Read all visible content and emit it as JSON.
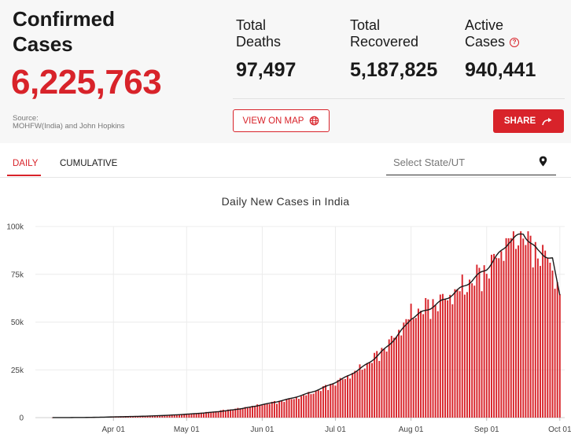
{
  "summary": {
    "confirmed_label": "Confirmed Cases",
    "confirmed_value": "6,225,763",
    "source_label": "Source:",
    "source_text": "MOHFW(India) and John Hopkins",
    "deaths_label_1": "Total",
    "deaths_label_2": "Deaths",
    "deaths_value": "97,497",
    "recovered_label_1": "Total",
    "recovered_label_2": "Recovered",
    "recovered_value": "5,187,825",
    "active_label_1": "Active",
    "active_label_2": "Cases",
    "active_value": "940,441",
    "help_icon": "?"
  },
  "buttons": {
    "map_label": "VIEW ON MAP",
    "share_label": "SHARE"
  },
  "tabs": [
    {
      "label": "DAILY",
      "active": true
    },
    {
      "label": "CUMULATIVE",
      "active": false
    }
  ],
  "state_select": {
    "placeholder": "Select State/UT"
  },
  "icons": {
    "globe": "globe-icon",
    "share": "share-arrow-icon",
    "pin": "location-pin-icon"
  },
  "colors": {
    "accent": "#d8232a",
    "bar": "#d8232a",
    "line": "#1a1a1a"
  },
  "chart_data": {
    "type": "bar",
    "title": "Daily New Cases in India",
    "xlabel": "",
    "ylabel": "",
    "x_start": "2020-03-07",
    "x_end": "2020-10-01",
    "x_ticks": [
      "Apr 01",
      "May 01",
      "Jun 01",
      "Jul 01",
      "Aug 01",
      "Sep 01",
      "Oct 01"
    ],
    "y_ticks": [
      "0",
      "25k",
      "50k",
      "75k",
      "100k"
    ],
    "ylim": [
      0,
      100000
    ],
    "grid": true,
    "legend": "none",
    "series": [
      {
        "kind": "bar",
        "anchors": [
          [
            "2020-03-07",
            30
          ],
          [
            "2020-03-20",
            100
          ],
          [
            "2020-04-01",
            450
          ],
          [
            "2020-04-15",
            1000
          ],
          [
            "2020-05-01",
            1900
          ],
          [
            "2020-05-15",
            3700
          ],
          [
            "2020-06-01",
            7000
          ],
          [
            "2020-06-15",
            10500
          ],
          [
            "2020-07-01",
            18500
          ],
          [
            "2020-07-15",
            29500
          ],
          [
            "2020-08-01",
            55000
          ],
          [
            "2020-08-15",
            63000
          ],
          [
            "2020-09-01",
            78000
          ],
          [
            "2020-09-11",
            96000
          ],
          [
            "2020-09-16",
            97000
          ],
          [
            "2020-09-22",
            87000
          ],
          [
            "2020-09-27",
            84000
          ],
          [
            "2020-10-01",
            65000
          ]
        ]
      },
      {
        "kind": "line",
        "anchors": [
          [
            "2020-03-07",
            20
          ],
          [
            "2020-04-01",
            400
          ],
          [
            "2020-05-01",
            1800
          ],
          [
            "2020-06-01",
            6800
          ],
          [
            "2020-07-01",
            18500
          ],
          [
            "2020-07-15",
            29000
          ],
          [
            "2020-08-01",
            52000
          ],
          [
            "2020-08-15",
            62000
          ],
          [
            "2020-09-01",
            78000
          ],
          [
            "2020-09-10",
            92000
          ],
          [
            "2020-09-16",
            96500
          ],
          [
            "2020-09-22",
            87000
          ],
          [
            "2020-09-28",
            83000
          ],
          [
            "2020-10-01",
            64000
          ]
        ]
      }
    ]
  }
}
